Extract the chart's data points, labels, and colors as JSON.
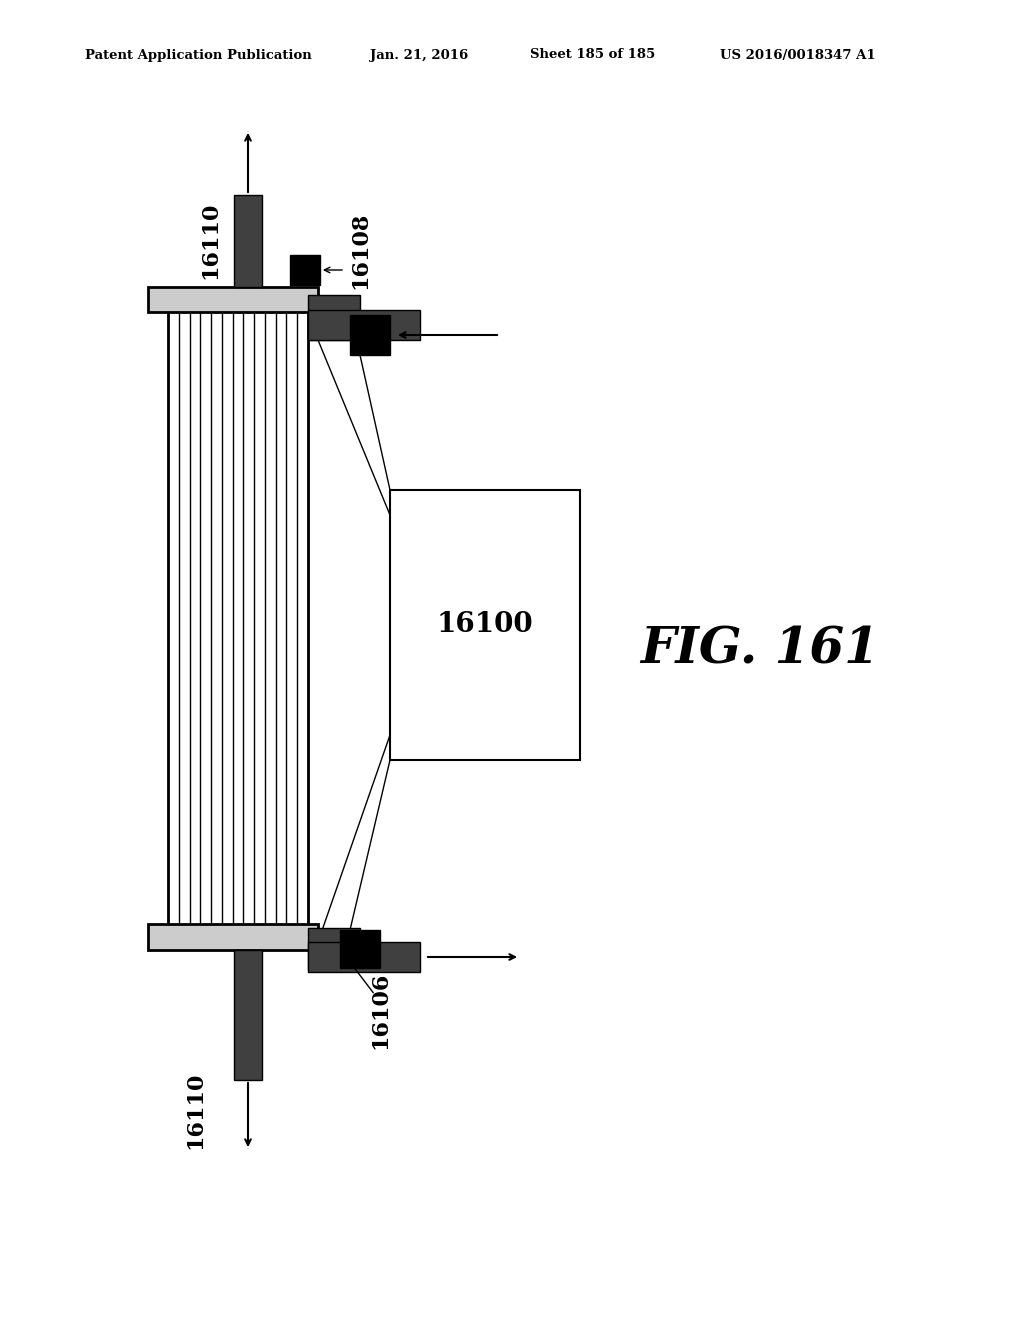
{
  "bg_color": "#ffffff",
  "header_text": "Patent Application Publication",
  "header_date": "Jan. 21, 2016",
  "header_sheet": "Sheet 185 of 185",
  "header_patent": "US 2016/0018347 A1",
  "fig_label": "FIG. 161",
  "black": "#000000",
  "dark_gray": "#404040",
  "med_gray": "#888888",
  "plate_fill": "#cccccc",
  "col_fill": "#ffffff",
  "num_stripes": 13
}
